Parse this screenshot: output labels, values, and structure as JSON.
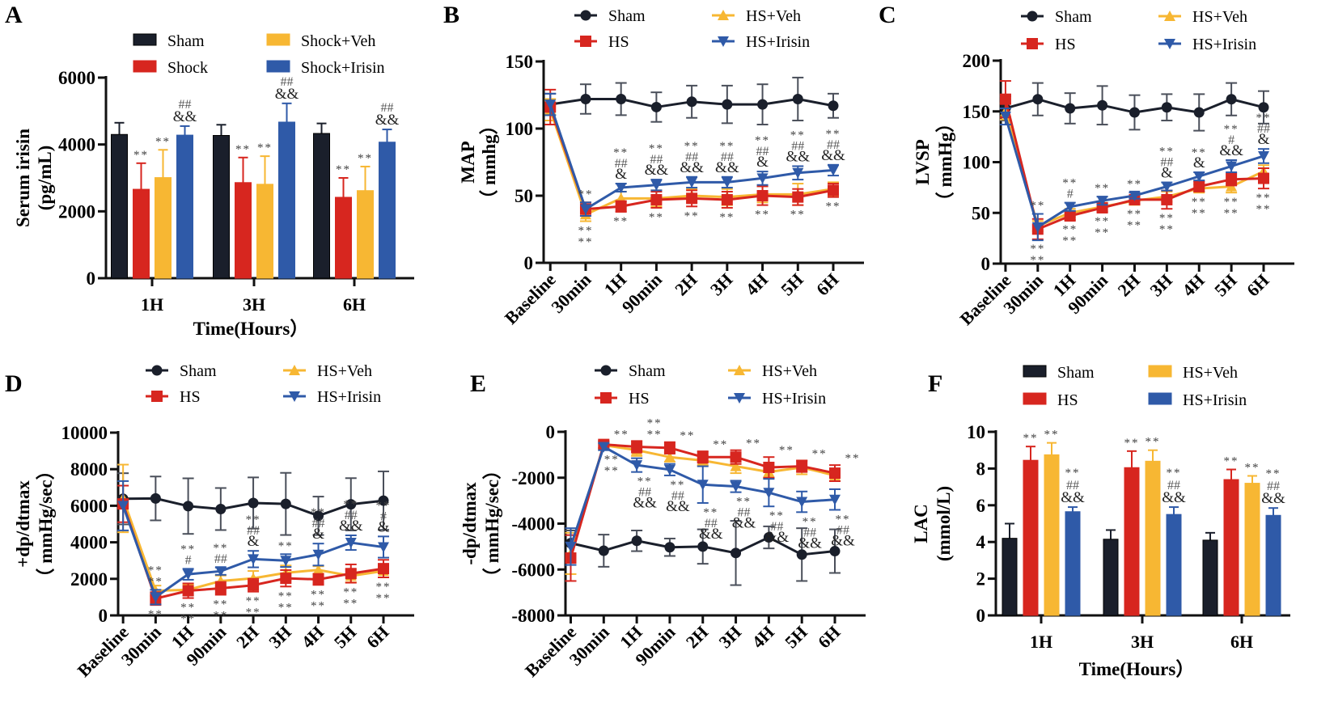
{
  "colors": {
    "sham": "#1a1f2b",
    "hs": "#d7261f",
    "veh": "#f7b733",
    "irisin": "#2f5aa8",
    "axis": "#111111",
    "sham_err": "#4a4f5a"
  },
  "chart_data": [
    {
      "id": "A",
      "panel_label": "A",
      "type": "bar",
      "title": "",
      "xlabel": "Time(Hours）",
      "ylabel": "Serum irisin",
      "ylabel2": "(pg/mL)",
      "categories": [
        "1H",
        "3H",
        "6H"
      ],
      "ylim": [
        0,
        6000
      ],
      "yticks": [
        "0",
        "2000",
        "4000",
        "6000"
      ],
      "ytick_values": [
        0,
        2000,
        4000,
        6000
      ],
      "legend": [
        "Sham",
        "Shock",
        "Shock+Veh",
        "Shock+Irisin"
      ],
      "series": [
        {
          "name": "Sham",
          "color_key": "sham",
          "values": [
            4300,
            4270,
            4330
          ],
          "err": [
            350,
            320,
            300
          ],
          "sig": [
            "",
            "",
            ""
          ]
        },
        {
          "name": "Shock",
          "color_key": "hs",
          "values": [
            2660,
            2860,
            2420
          ],
          "err": [
            780,
            750,
            580
          ],
          "sig": [
            "**",
            "**",
            "**"
          ]
        },
        {
          "name": "Shock+Veh",
          "color_key": "veh",
          "values": [
            3010,
            2810,
            2620
          ],
          "err": [
            830,
            840,
            720
          ],
          "sig": [
            "**",
            "**",
            "**"
          ]
        },
        {
          "name": "Shock+Irisin",
          "color_key": "irisin",
          "values": [
            4280,
            4670,
            4070
          ],
          "err": [
            270,
            560,
            380
          ],
          "sig": [
            "##\n&&",
            "##\n&&",
            "##\n&&"
          ]
        }
      ]
    },
    {
      "id": "B",
      "panel_label": "B",
      "type": "line",
      "ylabel": "MAP",
      "ylabel2": "（ mmhg）",
      "categories": [
        "Baseline",
        "30min",
        "1H",
        "90min",
        "2H",
        "3H",
        "4H",
        "5H",
        "6H"
      ],
      "ylim": [
        0,
        150
      ],
      "yticks": [
        "0",
        "50",
        "100",
        "150"
      ],
      "ytick_values": [
        0,
        50,
        100,
        150
      ],
      "legend": [
        "Sham",
        "HS",
        "HS+Veh",
        "HS+Irisin"
      ],
      "series": [
        {
          "name": "Sham",
          "color_key": "sham",
          "marker": "circle",
          "values": [
            118,
            122,
            122,
            116,
            120,
            118,
            118,
            122,
            117
          ],
          "err": [
            8,
            11,
            12,
            11,
            12,
            14,
            15,
            16,
            9
          ]
        },
        {
          "name": "HS",
          "color_key": "hs",
          "marker": "square",
          "values": [
            116,
            40,
            42,
            47,
            48,
            47,
            50,
            49,
            54
          ],
          "err": [
            13,
            5,
            4,
            6,
            6,
            6,
            7,
            6,
            5
          ]
        },
        {
          "name": "HS+Veh",
          "color_key": "veh",
          "marker": "triangle-up",
          "values": [
            114,
            36,
            48,
            48,
            50,
            49,
            51,
            51,
            55
          ],
          "err": [
            8,
            5,
            5,
            6,
            5,
            6,
            6,
            8,
            5
          ]
        },
        {
          "name": "HS+Irisin",
          "color_key": "irisin",
          "marker": "triangle-down",
          "values": [
            118,
            40,
            56,
            58,
            60,
            60,
            63,
            67,
            69
          ],
          "err": [
            8,
            5,
            3,
            4,
            4,
            4,
            5,
            5,
            4
          ]
        }
      ],
      "annotations_above": [
        "",
        "**",
        "**\n##\n&",
        "**\n##\n&&",
        "**\n##\n&&",
        "**\n##\n&&",
        "**\n##\n&",
        "**\n##\n&&",
        "**\n##\n&&"
      ],
      "annotations_below": [
        "",
        "**\n**",
        "**",
        "**",
        "**",
        "**",
        "**",
        "**",
        "**"
      ]
    },
    {
      "id": "C",
      "panel_label": "C",
      "type": "line",
      "ylabel": "LVSP",
      "ylabel2": "（ mmHg）",
      "categories": [
        "Baseline",
        "30min",
        "1H",
        "90min",
        "2H",
        "3H",
        "4H",
        "5H",
        "6H"
      ],
      "ylim": [
        0,
        200
      ],
      "yticks": [
        "0",
        "50",
        "100",
        "150",
        "200"
      ],
      "ytick_values": [
        0,
        50,
        100,
        150,
        200
      ],
      "legend": [
        "Sham",
        "HS",
        "HS+Veh",
        "HS+Irisin"
      ],
      "series": [
        {
          "name": "Sham",
          "color_key": "sham",
          "marker": "circle",
          "values": [
            153,
            162,
            153,
            156,
            149,
            154,
            149,
            162,
            154
          ],
          "err": [
            12,
            16,
            15,
            19,
            17,
            13,
            18,
            16,
            16
          ]
        },
        {
          "name": "HS",
          "color_key": "hs",
          "marker": "square",
          "values": [
            162,
            34,
            47,
            55,
            63,
            63,
            76,
            83,
            84
          ],
          "err": [
            18,
            10,
            4,
            4,
            4,
            9,
            5,
            6,
            10
          ]
        },
        {
          "name": "HS+Veh",
          "color_key": "veh",
          "marker": "triangle-up",
          "values": [
            150,
            37,
            50,
            56,
            62,
            66,
            74,
            76,
            91
          ],
          "err": [
            8,
            5,
            4,
            4,
            4,
            5,
            4,
            6,
            6
          ]
        },
        {
          "name": "HS+Irisin",
          "color_key": "irisin",
          "marker": "triangle-down",
          "values": [
            145,
            36,
            56,
            62,
            67,
            76,
            86,
            96,
            106
          ],
          "err": [
            8,
            13,
            4,
            4,
            3,
            4,
            4,
            6,
            7
          ]
        }
      ],
      "annotations_above": [
        "",
        "**",
        "**\n#",
        "**",
        "**",
        "**\n##\n&",
        "**\n&",
        "**\n#\n&&",
        "**\n##\n&"
      ],
      "annotations_below": [
        "",
        "**\n**",
        "**\n**",
        "**\n**",
        "**\n**",
        "**\n**",
        "**\n**",
        "**\n**",
        "**\n**"
      ]
    },
    {
      "id": "D",
      "panel_label": "D",
      "type": "line",
      "ylabel": "+dp/dtmax",
      "ylabel2": "（ mmHg/sec）",
      "categories": [
        "Baseline",
        "30min",
        "1H",
        "90min",
        "2H",
        "3H",
        "4H",
        "5H",
        "6H"
      ],
      "ylim": [
        0,
        10000
      ],
      "yticks": [
        "0",
        "2000",
        "4000",
        "6000",
        "8000",
        "10000"
      ],
      "ytick_values": [
        0,
        2000,
        4000,
        6000,
        8000,
        10000
      ],
      "legend": [
        "Sham",
        "HS",
        "HS+Veh",
        "HS+Irisin"
      ],
      "series": [
        {
          "name": "Sham",
          "color_key": "sham",
          "marker": "circle",
          "values": [
            6380,
            6400,
            5980,
            5820,
            6150,
            6100,
            5450,
            6080,
            6280
          ],
          "err": [
            1400,
            1200,
            1520,
            1150,
            1400,
            1700,
            1050,
            1430,
            1600
          ]
        },
        {
          "name": "HS",
          "color_key": "hs",
          "marker": "square",
          "values": [
            6100,
            920,
            1350,
            1480,
            1650,
            2030,
            1970,
            2290,
            2560
          ],
          "err": [
            1000,
            350,
            400,
            350,
            350,
            450,
            300,
            500,
            480
          ]
        },
        {
          "name": "HS+Veh",
          "color_key": "veh",
          "marker": "triangle-up",
          "values": [
            6400,
            1350,
            1400,
            1880,
            2030,
            2330,
            2490,
            2160,
            2430
          ],
          "err": [
            1850,
            280,
            300,
            300,
            400,
            400,
            200,
            350,
            350
          ]
        },
        {
          "name": "HS+Irisin",
          "color_key": "irisin",
          "marker": "triangle-down",
          "values": [
            6000,
            1000,
            2250,
            2420,
            3080,
            3000,
            3330,
            3980,
            3740
          ],
          "err": [
            1350,
            400,
            300,
            200,
            450,
            350,
            600,
            400,
            580
          ]
        }
      ],
      "annotations_above": [
        "",
        "**\n**",
        "**\n#",
        "**\n##",
        "**\n##\n&",
        "**",
        "**\n##\n&",
        "**\n##\n&&",
        "**\n#\n&"
      ],
      "annotations_below": [
        "",
        "**",
        "**\n**",
        "**\n**",
        "**\n**",
        "**\n**",
        "**\n**",
        "**\n**",
        "**\n**"
      ]
    },
    {
      "id": "E",
      "panel_label": "E",
      "type": "line",
      "ylabel": "-dp/dtmax",
      "ylabel2": "（ mmHg/sec）",
      "categories": [
        "Baseline",
        "30min",
        "1H",
        "90min",
        "2H",
        "3H",
        "4H",
        "5H",
        "6H"
      ],
      "ylim": [
        -8000,
        0
      ],
      "yticks": [
        "-8000",
        "-6000",
        "-4000",
        "-2000",
        "0"
      ],
      "ytick_values": [
        -8000,
        -6000,
        -4000,
        -2000,
        0
      ],
      "legend": [
        "Sham",
        "HS",
        "HS+Veh",
        "HS+Irisin"
      ],
      "series": [
        {
          "name": "Sham",
          "color_key": "sham",
          "marker": "circle",
          "values": [
            -4850,
            -5180,
            -4750,
            -5030,
            -5000,
            -5280,
            -4600,
            -5350,
            -5200
          ],
          "err": [
            550,
            700,
            450,
            380,
            750,
            1400,
            480,
            1150,
            950
          ]
        },
        {
          "name": "HS",
          "color_key": "hs",
          "marker": "square",
          "values": [
            -5500,
            -550,
            -650,
            -700,
            -1100,
            -1100,
            -1550,
            -1500,
            -1800
          ],
          "err": [
            1000,
            150,
            250,
            250,
            250,
            300,
            450,
            250,
            350
          ]
        },
        {
          "name": "HS+Veh",
          "color_key": "veh",
          "marker": "triangle-up",
          "values": [
            -5300,
            -580,
            -800,
            -1100,
            -1250,
            -1500,
            -1750,
            -1550,
            -1900
          ],
          "err": [
            900,
            150,
            250,
            200,
            200,
            300,
            250,
            300,
            250
          ]
        },
        {
          "name": "HS+Irisin",
          "color_key": "irisin",
          "marker": "triangle-down",
          "values": [
            -5000,
            -650,
            -1450,
            -1650,
            -2300,
            -2380,
            -2650,
            -3050,
            -2950
          ],
          "err": [
            800,
            150,
            300,
            250,
            800,
            250,
            600,
            450,
            450
          ]
        }
      ],
      "annotations_above": [
        "",
        "**",
        "**\n**",
        "**",
        "**",
        "**",
        "**",
        "**",
        "**"
      ],
      "annotations_below": [
        "",
        "**\n**",
        "**\n##\n&&",
        "**\n##\n&&",
        "**\n##\n&&",
        "**\n##\n&&",
        "**\n##\n&&",
        "**\n##\n&&",
        "**\n##\n&&"
      ]
    },
    {
      "id": "F",
      "panel_label": "F",
      "type": "bar",
      "xlabel": "Time(Hours）",
      "ylabel": "LAC",
      "ylabel2": "(mmol/L)",
      "categories": [
        "1H",
        "3H",
        "6H"
      ],
      "ylim": [
        0,
        10
      ],
      "yticks": [
        "0",
        "2",
        "4",
        "6",
        "8",
        "10"
      ],
      "ytick_values": [
        0,
        2,
        4,
        6,
        8,
        10
      ],
      "legend": [
        "Sham",
        "HS",
        "HS+Veh",
        "HS+Irisin"
      ],
      "series": [
        {
          "name": "Sham",
          "color_key": "sham",
          "values": [
            4.2,
            4.15,
            4.1
          ],
          "err": [
            0.8,
            0.5,
            0.4
          ],
          "sig": [
            "",
            "",
            ""
          ]
        },
        {
          "name": "HS",
          "color_key": "hs",
          "values": [
            8.45,
            8.05,
            7.4
          ],
          "err": [
            0.75,
            0.9,
            0.55
          ],
          "sig": [
            "**",
            "**",
            "**"
          ]
        },
        {
          "name": "HS+Veh",
          "color_key": "veh",
          "values": [
            8.75,
            8.4,
            7.2
          ],
          "err": [
            0.65,
            0.6,
            0.4
          ],
          "sig": [
            "**",
            "**",
            "**"
          ]
        },
        {
          "name": "HS+Irisin",
          "color_key": "irisin",
          "values": [
            5.65,
            5.5,
            5.45
          ],
          "err": [
            0.25,
            0.4,
            0.4
          ],
          "sig": [
            "**\n##\n&&",
            "**\n##\n&&",
            "**\n##\n&&"
          ]
        }
      ]
    }
  ]
}
